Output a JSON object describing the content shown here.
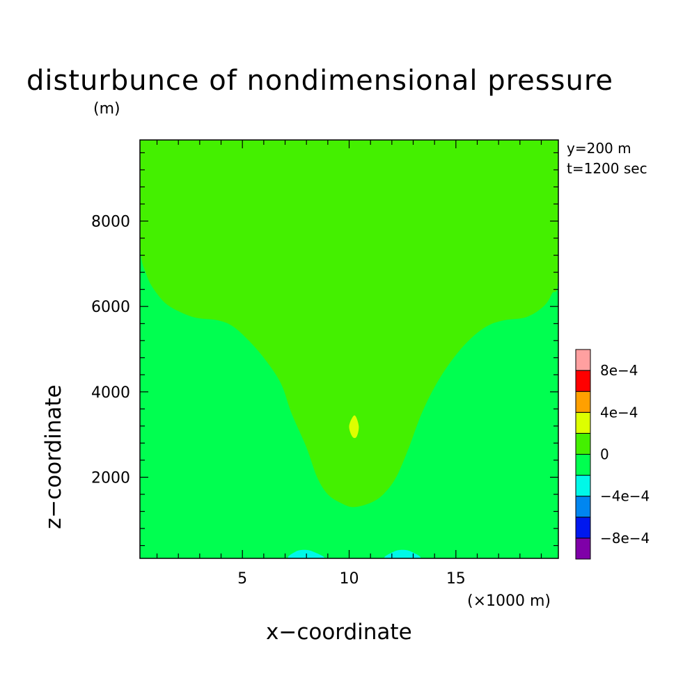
{
  "chart_data": {
    "type": "heatmap",
    "title": "disturbunce of nondimensional pressure",
    "xlabel": "x−coordinate",
    "ylabel": "z−coordinate",
    "x_unit_label": "(×1000 m)",
    "y_unit_label": "(m)",
    "annotations": [
      "y=200 m",
      "t=1200 sec"
    ],
    "xlim": [
      0.2,
      19.8
    ],
    "ylim": [
      100,
      9900
    ],
    "x_ticks": [
      5,
      10,
      15
    ],
    "y_ticks": [
      2000,
      4000,
      6000,
      8000
    ],
    "x_minor_step": 1,
    "y_minor_step": 400,
    "colorbar": {
      "levels": [
        -0.001,
        -0.0008,
        -0.0006,
        -0.0004,
        -0.0002,
        0,
        0.0002,
        0.0004,
        0.0006,
        0.0008,
        0.001
      ],
      "colors": [
        "#7f00a8",
        "#0018ef",
        "#0086f0",
        "#00f8e8",
        "#00ff50",
        "#44f000",
        "#ddff00",
        "#ffa000",
        "#ff0000",
        "#ffa0a0"
      ],
      "tick_labels": [
        {
          "value": -0.0008,
          "text": "−8e−4"
        },
        {
          "value": -0.0004,
          "text": "−4e−4"
        },
        {
          "value": 0,
          "text": "0"
        },
        {
          "value": 0.0004,
          "text": "4e−4"
        },
        {
          "value": 0.0008,
          "text": "8e−4"
        }
      ]
    },
    "background_level": "0 to -2e-4",
    "regions": [
      {
        "name": "positive-pressure-plume",
        "range": "0 to 2e-4",
        "color": "#44f000",
        "boundary_xz": [
          [
            0.2,
            9900
          ],
          [
            19.8,
            9900
          ],
          [
            19.8,
            6750
          ],
          [
            19.5,
            6300
          ],
          [
            19.1,
            6000
          ],
          [
            18.3,
            5750
          ],
          [
            17.3,
            5680
          ],
          [
            16.5,
            5550
          ],
          [
            15.7,
            5250
          ],
          [
            14.9,
            4800
          ],
          [
            14.1,
            4200
          ],
          [
            13.4,
            3500
          ],
          [
            12.8,
            2700
          ],
          [
            12.2,
            2000
          ],
          [
            11.6,
            1600
          ],
          [
            11.0,
            1400
          ],
          [
            10.2,
            1300
          ],
          [
            9.6,
            1400
          ],
          [
            9.0,
            1600
          ],
          [
            8.5,
            2000
          ],
          [
            8.0,
            2700
          ],
          [
            7.3,
            3500
          ],
          [
            6.8,
            4200
          ],
          [
            6.0,
            4800
          ],
          [
            5.2,
            5250
          ],
          [
            4.5,
            5550
          ],
          [
            3.8,
            5680
          ],
          [
            2.7,
            5750
          ],
          [
            1.6,
            6000
          ],
          [
            1.0,
            6300
          ],
          [
            0.5,
            6750
          ],
          [
            0.2,
            7500
          ]
        ]
      },
      {
        "name": "pressure-max-core",
        "range": "2e-4 to 4e-4",
        "color": "#ddff00",
        "boundary_xz": [
          [
            10.25,
            3450
          ],
          [
            10.45,
            3200
          ],
          [
            10.35,
            2950
          ],
          [
            10.15,
            2950
          ],
          [
            10.0,
            3200
          ]
        ]
      },
      {
        "name": "negative-lobe-left",
        "range": "-2e-4 to -4e-4",
        "color": "#00f8e8",
        "boundary_xz": [
          [
            7.2,
            100
          ],
          [
            7.5,
            260
          ],
          [
            7.9,
            300
          ],
          [
            8.3,
            260
          ],
          [
            8.8,
            100
          ]
        ]
      },
      {
        "name": "negative-lobe-right",
        "range": "-2e-4 to -4e-4",
        "color": "#00f8e8",
        "boundary_xz": [
          [
            11.7,
            100
          ],
          [
            12.1,
            260
          ],
          [
            12.5,
            300
          ],
          [
            12.9,
            260
          ],
          [
            13.3,
            100
          ]
        ]
      }
    ]
  }
}
